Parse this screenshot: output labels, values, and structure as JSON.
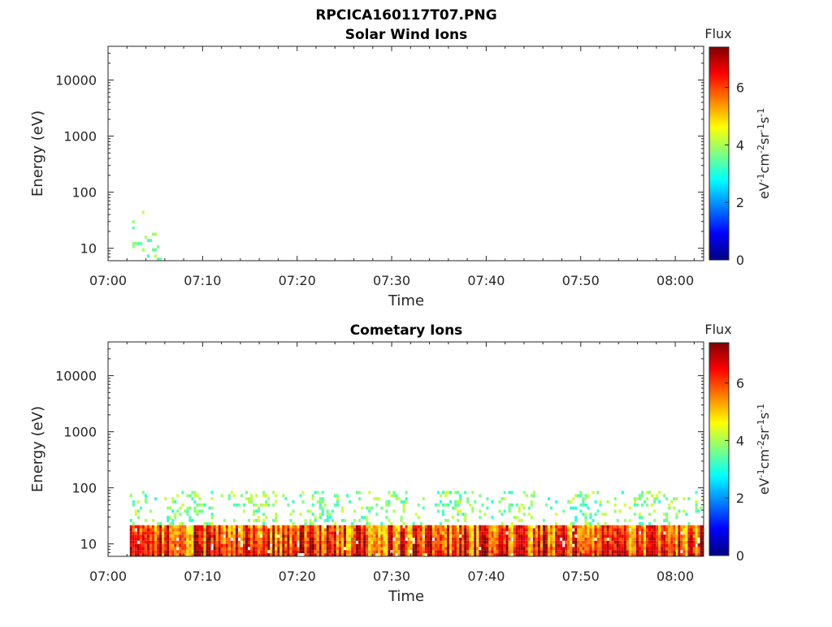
{
  "figure": {
    "title": "RPCICA160117T07.PNG"
  },
  "colors": {
    "colormap": [
      "#00007f",
      "#0000ff",
      "#0080ff",
      "#00ffff",
      "#80ff80",
      "#ffff00",
      "#ff8000",
      "#ff0000",
      "#7f0000"
    ]
  },
  "chart_data": [
    {
      "type": "heatmap",
      "title": "Solar Wind Ions",
      "xlabel": "Time",
      "ylabel": "Energy (eV)",
      "x_ticks": [
        "07:00",
        "07:10",
        "07:20",
        "07:30",
        "07:40",
        "07:50",
        "08:00"
      ],
      "x_range_minutes": [
        0,
        63
      ],
      "y_scale": "log",
      "y_ticks": [
        "10",
        "100",
        "1000",
        "10000"
      ],
      "y_range": [
        6,
        40000
      ],
      "colorbar": {
        "title": "Flux",
        "label_base": "eV",
        "label_parts": [
          [
            "-1",
            "cm"
          ],
          [
            "-2",
            "sr"
          ],
          [
            "-1",
            "s"
          ],
          [
            "-1",
            ""
          ]
        ],
        "ticks": [
          "0",
          "2",
          "4",
          "6"
        ],
        "range": [
          0,
          7.4
        ]
      },
      "activity": {
        "t_start": 2.3,
        "t_end": 5.5,
        "e_min": 6,
        "e_max": 55,
        "flux": 3.0
      }
    },
    {
      "type": "heatmap",
      "title": "Cometary Ions",
      "xlabel": "Time",
      "ylabel": "Energy (eV)",
      "x_ticks": [
        "07:00",
        "07:10",
        "07:20",
        "07:30",
        "07:40",
        "07:50",
        "08:00"
      ],
      "x_range_minutes": [
        0,
        63
      ],
      "y_scale": "log",
      "y_ticks": [
        "10",
        "100",
        "1000",
        "10000"
      ],
      "y_range": [
        6,
        40000
      ],
      "colorbar": {
        "title": "Flux",
        "label_base": "eV",
        "label_parts": [
          [
            "-1",
            "cm"
          ],
          [
            "-2",
            "sr"
          ],
          [
            "-1",
            "s"
          ],
          [
            "-1",
            ""
          ]
        ],
        "ticks": [
          "0",
          "2",
          "4",
          "6"
        ],
        "range": [
          0,
          7.4
        ]
      },
      "activity": {
        "t_start": 2.3,
        "t_end": 63,
        "e_min": 6,
        "e_max": 85,
        "core_e_max": 22,
        "flux": 5.5
      }
    }
  ]
}
